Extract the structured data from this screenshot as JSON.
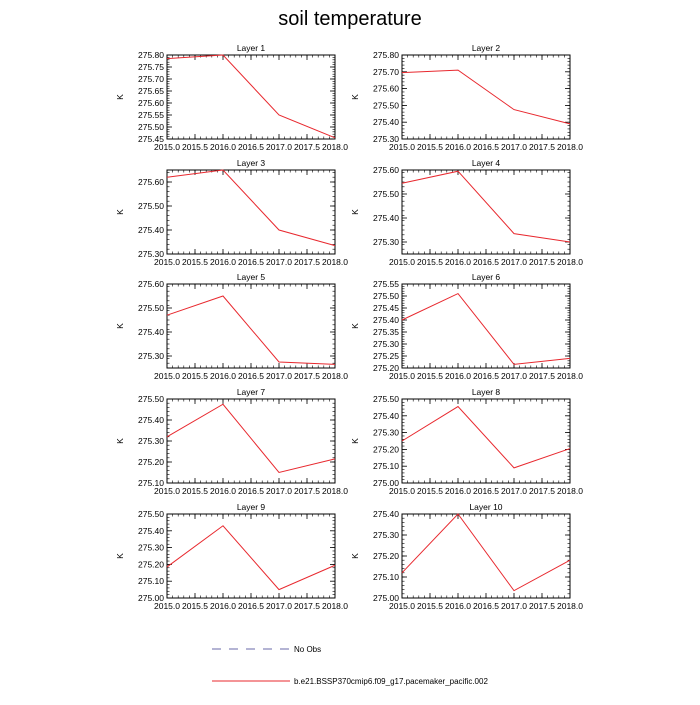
{
  "figure": {
    "title": "soil temperature"
  },
  "chart_data": [
    {
      "type": "line",
      "title": "Layer 1",
      "ylabel": "K",
      "x": [
        2015.0,
        2016.0,
        2017.0,
        2018.0
      ],
      "series": [
        {
          "name": "b.e21.BSSP370cmip6.f09_g17.pacemaker_pacific.002",
          "values": [
            275.785,
            275.8,
            275.55,
            275.455
          ]
        }
      ],
      "xlim": [
        2015.0,
        2018.0
      ],
      "ylim": [
        275.45,
        275.8
      ],
      "xticks": [
        "2015.0",
        "2015.5",
        "2016.0",
        "2016.5",
        "2017.0",
        "2017.5",
        "2018.0"
      ],
      "yticks": [
        "275.45",
        "275.50",
        "275.55",
        "275.60",
        "275.65",
        "275.70",
        "275.75",
        "275.80"
      ]
    },
    {
      "type": "line",
      "title": "Layer 2",
      "ylabel": "K",
      "x": [
        2015.0,
        2016.0,
        2017.0,
        2018.0
      ],
      "series": [
        {
          "name": "b.e21.BSSP370cmip6.f09_g17.pacemaker_pacific.002",
          "values": [
            275.695,
            275.71,
            275.475,
            275.39
          ]
        }
      ],
      "xlim": [
        2015.0,
        2018.0
      ],
      "ylim": [
        275.3,
        275.8
      ],
      "xticks": [
        "2015.0",
        "2015.5",
        "2016.0",
        "2016.5",
        "2017.0",
        "2017.5",
        "2018.0"
      ],
      "yticks": [
        "275.30",
        "275.40",
        "275.50",
        "275.60",
        "275.70",
        "275.80"
      ]
    },
    {
      "type": "line",
      "title": "Layer 3",
      "ylabel": "K",
      "x": [
        2015.0,
        2016.0,
        2017.0,
        2018.0
      ],
      "series": [
        {
          "name": "b.e21.BSSP370cmip6.f09_g17.pacemaker_pacific.002",
          "values": [
            275.62,
            275.65,
            275.4,
            275.335
          ]
        }
      ],
      "xlim": [
        2015.0,
        2018.0
      ],
      "ylim": [
        275.3,
        275.65
      ],
      "xticks": [
        "2015.0",
        "2015.5",
        "2016.0",
        "2016.5",
        "2017.0",
        "2017.5",
        "2018.0"
      ],
      "yticks": [
        "275.30",
        "275.40",
        "275.50",
        "275.60"
      ]
    },
    {
      "type": "line",
      "title": "Layer 4",
      "ylabel": "K",
      "x": [
        2015.0,
        2016.0,
        2017.0,
        2018.0
      ],
      "series": [
        {
          "name": "b.e21.BSSP370cmip6.f09_g17.pacemaker_pacific.002",
          "values": [
            275.545,
            275.595,
            275.335,
            275.3
          ]
        }
      ],
      "xlim": [
        2015.0,
        2018.0
      ],
      "ylim": [
        275.25,
        275.6
      ],
      "xticks": [
        "2015.0",
        "2015.5",
        "2016.0",
        "2016.5",
        "2017.0",
        "2017.5",
        "2018.0"
      ],
      "yticks": [
        "275.30",
        "275.40",
        "275.50",
        "275.60"
      ]
    },
    {
      "type": "line",
      "title": "Layer 5",
      "ylabel": "K",
      "x": [
        2015.0,
        2016.0,
        2017.0,
        2018.0
      ],
      "series": [
        {
          "name": "b.e21.BSSP370cmip6.f09_g17.pacemaker_pacific.002",
          "values": [
            275.47,
            275.55,
            275.275,
            275.265
          ]
        }
      ],
      "xlim": [
        2015.0,
        2018.0
      ],
      "ylim": [
        275.25,
        275.6
      ],
      "xticks": [
        "2015.0",
        "2015.5",
        "2016.0",
        "2016.5",
        "2017.0",
        "2017.5",
        "2018.0"
      ],
      "yticks": [
        "275.30",
        "275.40",
        "275.50",
        "275.60"
      ]
    },
    {
      "type": "line",
      "title": "Layer 6",
      "ylabel": "K",
      "x": [
        2015.0,
        2016.0,
        2017.0,
        2018.0
      ],
      "series": [
        {
          "name": "b.e21.BSSP370cmip6.f09_g17.pacemaker_pacific.002",
          "values": [
            275.4,
            275.51,
            275.215,
            275.24
          ]
        }
      ],
      "xlim": [
        2015.0,
        2018.0
      ],
      "ylim": [
        275.2,
        275.55
      ],
      "xticks": [
        "2015.0",
        "2015.5",
        "2016.0",
        "2016.5",
        "2017.0",
        "2017.5",
        "2018.0"
      ],
      "yticks": [
        "275.20",
        "275.25",
        "275.30",
        "275.35",
        "275.40",
        "275.45",
        "275.50",
        "275.55"
      ]
    },
    {
      "type": "line",
      "title": "Layer 7",
      "ylabel": "K",
      "x": [
        2015.0,
        2016.0,
        2017.0,
        2018.0
      ],
      "series": [
        {
          "name": "b.e21.BSSP370cmip6.f09_g17.pacemaker_pacific.002",
          "values": [
            275.32,
            275.475,
            275.15,
            275.215
          ]
        }
      ],
      "xlim": [
        2015.0,
        2018.0
      ],
      "ylim": [
        275.1,
        275.5
      ],
      "xticks": [
        "2015.0",
        "2015.5",
        "2016.0",
        "2016.5",
        "2017.0",
        "2017.5",
        "2018.0"
      ],
      "yticks": [
        "275.10",
        "275.20",
        "275.30",
        "275.40",
        "275.50"
      ]
    },
    {
      "type": "line",
      "title": "Layer 8",
      "ylabel": "K",
      "x": [
        2015.0,
        2016.0,
        2017.0,
        2018.0
      ],
      "series": [
        {
          "name": "b.e21.BSSP370cmip6.f09_g17.pacemaker_pacific.002",
          "values": [
            275.25,
            275.455,
            275.09,
            275.205
          ]
        }
      ],
      "xlim": [
        2015.0,
        2018.0
      ],
      "ylim": [
        275.0,
        275.5
      ],
      "xticks": [
        "2015.0",
        "2015.5",
        "2016.0",
        "2016.5",
        "2017.0",
        "2017.5",
        "2018.0"
      ],
      "yticks": [
        "275.00",
        "275.10",
        "275.20",
        "275.30",
        "275.40",
        "275.50"
      ]
    },
    {
      "type": "line",
      "title": "Layer 9",
      "ylabel": "K",
      "x": [
        2015.0,
        2016.0,
        2017.0,
        2018.0
      ],
      "series": [
        {
          "name": "b.e21.BSSP370cmip6.f09_g17.pacemaker_pacific.002",
          "values": [
            275.185,
            275.43,
            275.05,
            275.195
          ]
        }
      ],
      "xlim": [
        2015.0,
        2018.0
      ],
      "ylim": [
        275.0,
        275.5
      ],
      "xticks": [
        "2015.0",
        "2015.5",
        "2016.0",
        "2016.5",
        "2017.0",
        "2017.5",
        "2018.0"
      ],
      "yticks": [
        "275.00",
        "275.10",
        "275.20",
        "275.30",
        "275.40",
        "275.50"
      ]
    },
    {
      "type": "line",
      "title": "Layer 10",
      "ylabel": "K",
      "x": [
        2015.0,
        2016.0,
        2017.0,
        2018.0
      ],
      "series": [
        {
          "name": "b.e21.BSSP370cmip6.f09_g17.pacemaker_pacific.002",
          "values": [
            275.12,
            275.4,
            275.035,
            275.18
          ]
        }
      ],
      "xlim": [
        2015.0,
        2018.0
      ],
      "ylim": [
        275.0,
        275.4
      ],
      "xticks": [
        "2015.0",
        "2015.5",
        "2016.0",
        "2016.5",
        "2017.0",
        "2017.5",
        "2018.0"
      ],
      "yticks": [
        "275.00",
        "275.10",
        "275.20",
        "275.30",
        "275.40"
      ]
    }
  ],
  "legend": {
    "entries": [
      {
        "label": "No Obs",
        "style": "dashed",
        "color": "#6a6aa8"
      },
      {
        "label": "b.e21.BSSP370cmip6.f09_g17.pacemaker_pacific.002",
        "style": "solid",
        "color": "#e8282e"
      }
    ]
  },
  "colors": {
    "series_line": "#e8282e",
    "axis": "#000000"
  }
}
